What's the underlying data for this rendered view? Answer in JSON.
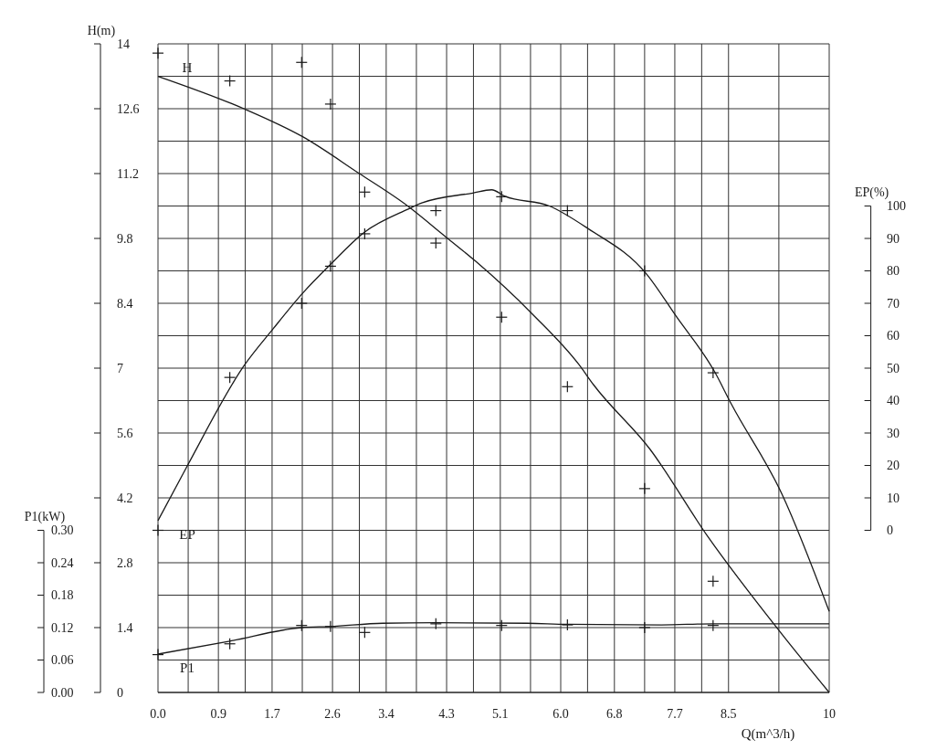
{
  "chart_data": {
    "type": "line",
    "xlabel": "Q(m^3/h)",
    "ylabel": "H(m)",
    "y2label": "EP(%)",
    "y3label": "P1(kW)",
    "xlim": [
      0,
      10
    ],
    "xticks": [
      {
        "value": 0,
        "label": "0.0"
      },
      0.9,
      1.7,
      2.6,
      3.4,
      4.3,
      5.1,
      {
        "value": 6,
        "label": "6.0"
      },
      6.8,
      7.7,
      8.5,
      10
    ],
    "ylim": [
      0,
      14
    ],
    "yticks": [
      0,
      1.4,
      2.8,
      4.2,
      5.6,
      7,
      8.4,
      9.8,
      11.2,
      12.6,
      14
    ],
    "y2lim": [
      -50,
      150
    ],
    "y2ticks": [
      0,
      10,
      20,
      30,
      40,
      50,
      60,
      70,
      80,
      90,
      100
    ],
    "y3lim": [
      0,
      1.2
    ],
    "y3ticks": [
      {
        "value": 0,
        "label": "0.00"
      },
      0.06,
      0.12,
      0.18,
      0.24,
      {
        "value": 0.3,
        "label": "0.30"
      }
    ],
    "grid": true,
    "series": [
      {
        "name": "H",
        "color": "#1a1a1a",
        "line_style": "solid",
        "x": [
          0,
          1.28,
          2.15,
          3.0,
          3.72,
          4.29,
          4.73,
          5.59,
          6.27,
          6.49,
          7.33,
          8.18,
          9.3,
          10
        ],
        "values": [
          13.3,
          12.6,
          12.0,
          11.2,
          10.5,
          9.83,
          9.31,
          8.15,
          7.08,
          6.64,
          5.25,
          3.39,
          1.25,
          0
        ]
      },
      {
        "name": "EP",
        "axis": "y2",
        "color": "#1a1a1a",
        "line_style": "solid",
        "x": [
          0,
          0.44,
          1.29,
          1.71,
          2.15,
          2.57,
          3.08,
          3.72,
          3.94,
          4.69,
          4.97,
          5.17,
          5.83,
          6.41,
          7.28,
          7.72,
          8.29,
          8.54,
          9.3,
          10
        ],
        "values": [
          3,
          20,
          51,
          62,
          73,
          82,
          92,
          99,
          101,
          104,
          105,
          103,
          100,
          93,
          79,
          66,
          49,
          39,
          11,
          -25
        ]
      },
      {
        "name": "P1",
        "axis": "y3",
        "color": "#1a1a1a",
        "line_style": "solid",
        "x": [
          0,
          1.07,
          2.14,
          2.57,
          3.35,
          4.14,
          5.5,
          6.1,
          7.5,
          8.27,
          10
        ],
        "values": [
          0.071,
          0.095,
          0.12,
          0.122,
          0.128,
          0.129,
          0.128,
          0.126,
          0.125,
          0.127,
          0.127
        ]
      },
      {
        "type": "scatter",
        "color": "#1a1a1a",
        "marker": "cross",
        "x": [
          0,
          1.07,
          2.14,
          2.57,
          3.08,
          4.14,
          5.12,
          6.1,
          7.25,
          8.27,
          0,
          1.07,
          2.14,
          2.57,
          3.08,
          4.14,
          5.12,
          6.1,
          7.25,
          8.27
        ],
        "values": [
          13.8,
          13.2,
          13.6,
          12.7,
          10.8,
          10.4,
          10.7,
          10.4,
          9.1,
          6.9,
          3.5,
          6.8,
          8.4,
          9.2,
          9.9,
          9.7,
          8.1,
          6.6,
          4.4,
          2.4
        ]
      },
      {
        "type": "scatter",
        "axis": "y3",
        "color": "#1a1a1a",
        "marker": "cross",
        "x": [
          0,
          1.07,
          2.14,
          2.57,
          3.08,
          4.14,
          5.12,
          6.1,
          7.25,
          8.27
        ],
        "values": [
          0.07,
          0.09,
          0.124,
          0.122,
          0.111,
          0.127,
          0.124,
          0.125,
          0.12,
          0.124
        ]
      }
    ]
  }
}
